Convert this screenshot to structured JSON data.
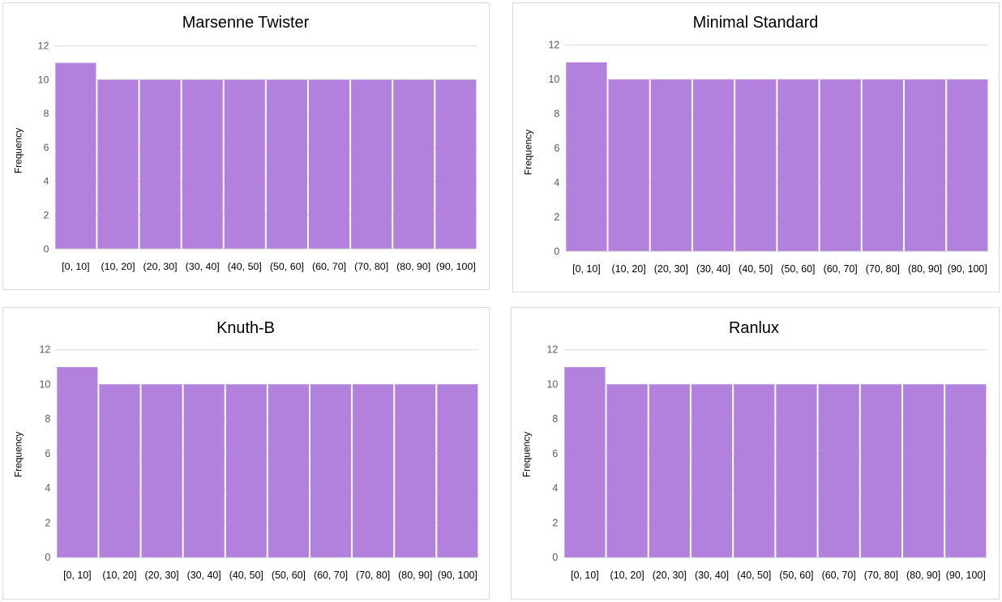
{
  "colors": {
    "bar_fill": "#b281dd",
    "bar_edge": "#ffffff",
    "gridline": "#d9d9d9"
  },
  "chart_data": [
    {
      "type": "bar",
      "title": "Marsenne Twister",
      "xlabel": "",
      "ylabel": "Frequency",
      "categories": [
        "[0, 10]",
        "(10, 20]",
        "(20, 30]",
        "(30, 40]",
        "(40, 50]",
        "(50, 60]",
        "(60, 70]",
        "(70, 80]",
        "(80, 90]",
        "(90, 100]"
      ],
      "values": [
        11,
        10,
        10,
        10,
        10,
        10,
        10,
        10,
        10,
        10
      ],
      "ylim": [
        0,
        12
      ],
      "yticks": [
        0,
        2,
        4,
        6,
        8,
        10,
        12
      ],
      "grid": true,
      "legend": "none"
    },
    {
      "type": "bar",
      "title": "Minimal Standard",
      "xlabel": "",
      "ylabel": "Frequency",
      "categories": [
        "[0, 10]",
        "(10, 20]",
        "(20, 30]",
        "(30, 40]",
        "(40, 50]",
        "(50, 60]",
        "(60, 70]",
        "(70, 80]",
        "(80, 90]",
        "(90, 100]"
      ],
      "values": [
        11,
        10,
        10,
        10,
        10,
        10,
        10,
        10,
        10,
        10
      ],
      "ylim": [
        0,
        12
      ],
      "yticks": [
        0,
        2,
        4,
        6,
        8,
        10,
        12
      ],
      "grid": true,
      "legend": "none"
    },
    {
      "type": "bar",
      "title": "Knuth-B",
      "xlabel": "",
      "ylabel": "Frequency",
      "categories": [
        "[0, 10]",
        "(10, 20]",
        "(20, 30]",
        "(30, 40]",
        "(40, 50]",
        "(50, 60]",
        "(60, 70]",
        "(70, 80]",
        "(80, 90]",
        "(90, 100]"
      ],
      "values": [
        11,
        10,
        10,
        10,
        10,
        10,
        10,
        10,
        10,
        10
      ],
      "ylim": [
        0,
        12
      ],
      "yticks": [
        0,
        2,
        4,
        6,
        8,
        10,
        12
      ],
      "grid": true,
      "legend": "none"
    },
    {
      "type": "bar",
      "title": "Ranlux",
      "xlabel": "",
      "ylabel": "Frequency",
      "categories": [
        "[0, 10]",
        "(10, 20]",
        "(20, 30]",
        "(30, 40]",
        "(40, 50]",
        "(50, 60]",
        "(60, 70]",
        "(70, 80]",
        "(80, 90]",
        "(90, 100]"
      ],
      "values": [
        11,
        10,
        10,
        10,
        10,
        10,
        10,
        10,
        10,
        10
      ],
      "ylim": [
        0,
        12
      ],
      "yticks": [
        0,
        2,
        4,
        6,
        8,
        10,
        12
      ],
      "grid": true,
      "legend": "none"
    }
  ]
}
